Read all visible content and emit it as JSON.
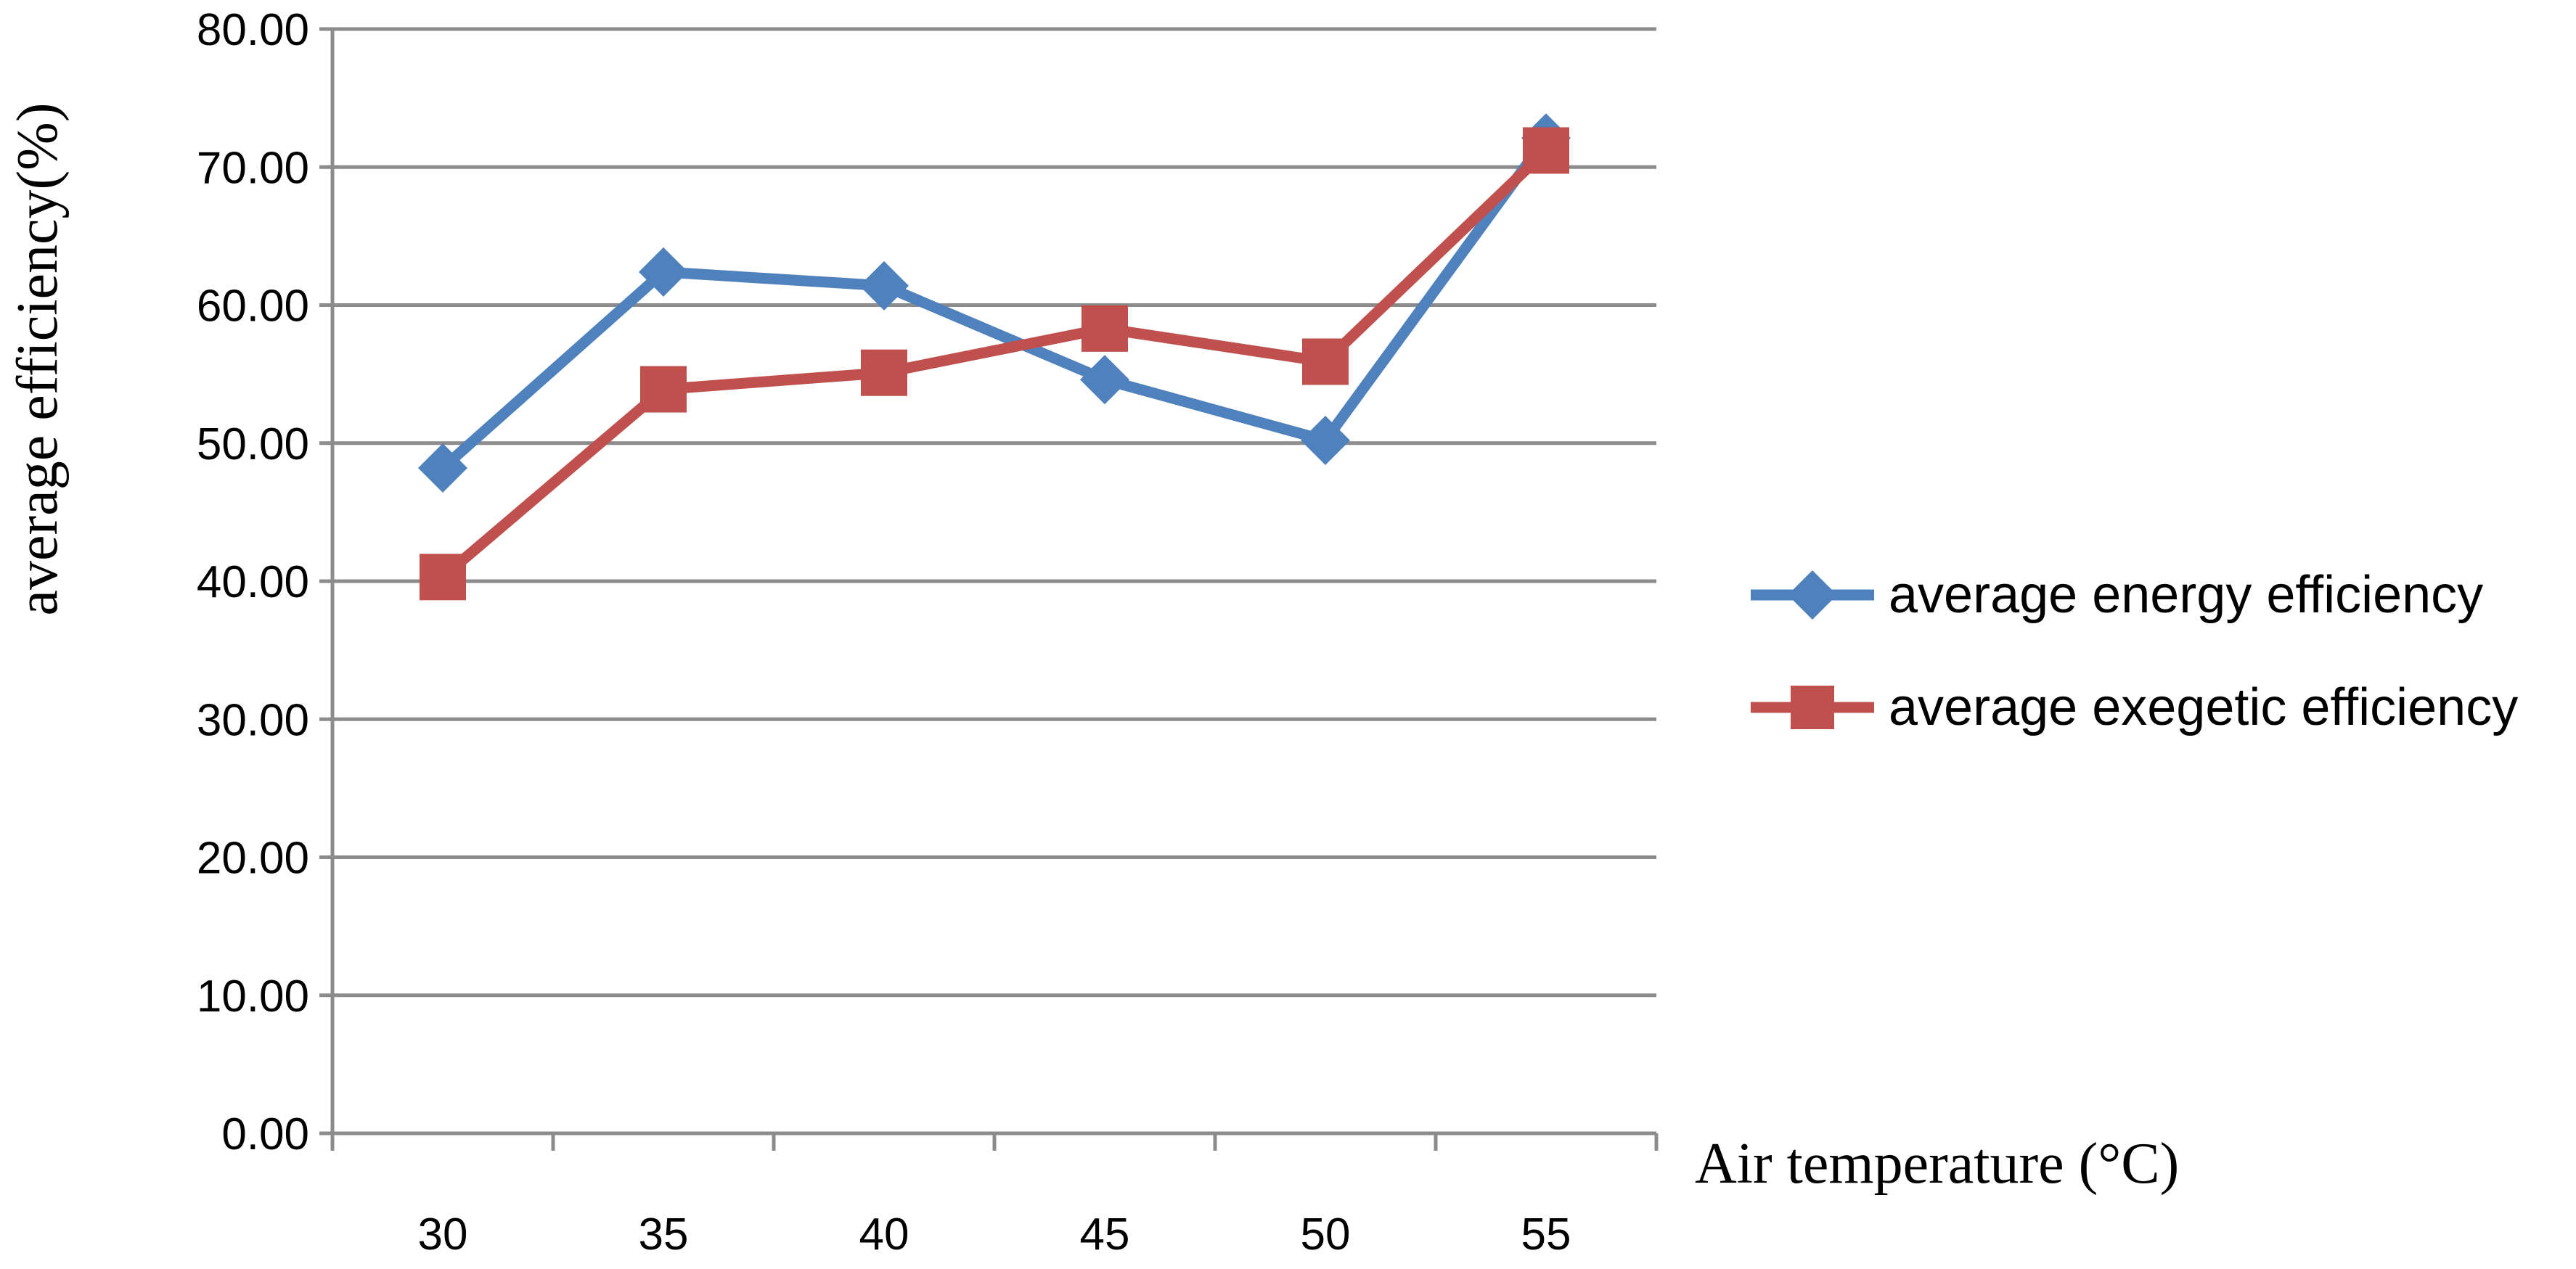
{
  "chart_data": {
    "type": "line",
    "categories": [
      "30",
      "35",
      "40",
      "45",
      "50",
      "55"
    ],
    "ylabel": "average efficiency(%)",
    "xlabel": "Air temperature (°C)",
    "ylim": [
      0,
      80
    ],
    "yticks": [
      "0.00",
      "10.00",
      "20.00",
      "30.00",
      "40.00",
      "50.00",
      "60.00",
      "70.00",
      "80.00"
    ],
    "grid": true,
    "legend_position": "right",
    "series": [
      {
        "name": "average energy efficiency",
        "color": "#4f81bd",
        "marker": "diamond",
        "values": [
          48.2,
          62.4,
          61.4,
          54.6,
          50.2,
          72.1
        ]
      },
      {
        "name": "average exegetic efficiency",
        "color": "#c0504d",
        "marker": "square",
        "values": [
          40.3,
          53.9,
          55.1,
          58.3,
          55.9,
          71.2
        ]
      }
    ]
  }
}
